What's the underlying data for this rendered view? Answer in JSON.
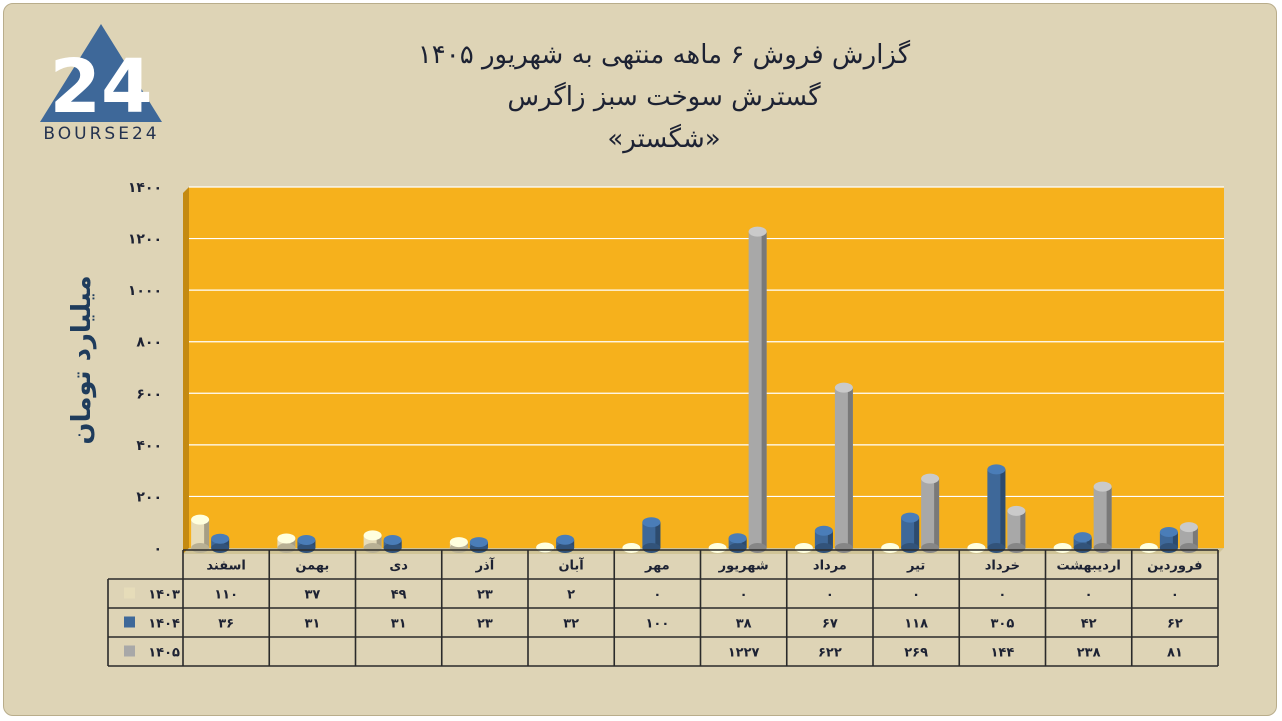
{
  "logo": {
    "digits": "24",
    "text": "BOURSE24"
  },
  "title": {
    "line1": "گزارش  فروش ۶ ماهه منتهی به شهریور ۱۴۰۵",
    "line2": "گسترش سوخت سبز زاگرس",
    "line3": "«شگستر»"
  },
  "colors": {
    "background": "#ded4b6",
    "plot_area": "#f6b11c",
    "series_1403": "#e6dcb9",
    "series_1404": "#3e6899",
    "series_1405": "#a8a8a8"
  },
  "chart_data": {
    "type": "bar",
    "ylabel": "میلیارد تومان",
    "ylim": [
      0,
      1400
    ],
    "yticks": [
      "۰",
      "۲۰۰",
      "۴۰۰",
      "۶۰۰",
      "۸۰۰",
      "۱۰۰۰",
      "۱۲۰۰",
      "۱۴۰۰"
    ],
    "grid": true,
    "categories": [
      "فروردین",
      "اردیبهشت",
      "خرداد",
      "تیر",
      "مرداد",
      "شهریور",
      "مهر",
      "آبان",
      "آذر",
      "دی",
      "بهمن",
      "اسفند"
    ],
    "series": [
      {
        "name": "۱۴۰۳",
        "values": [
          0,
          0,
          0,
          0,
          0,
          0,
          0,
          2,
          23,
          49,
          37,
          110
        ],
        "labels": [
          "۰",
          "۰",
          "۰",
          "۰",
          "۰",
          "۰",
          "۰",
          "۲",
          "۲۳",
          "۴۹",
          "۳۷",
          "۱۱۰"
        ]
      },
      {
        "name": "۱۴۰۴",
        "values": [
          62,
          42,
          305,
          118,
          67,
          38,
          100,
          32,
          23,
          31,
          31,
          36
        ],
        "labels": [
          "۶۲",
          "۴۲",
          "۳۰۵",
          "۱۱۸",
          "۶۷",
          "۳۸",
          "۱۰۰",
          "۳۲",
          "۲۳",
          "۳۱",
          "۳۱",
          "۳۶"
        ]
      },
      {
        "name": "۱۴۰۵",
        "values": [
          81,
          238,
          144,
          269,
          622,
          1227,
          null,
          null,
          null,
          null,
          null,
          null
        ],
        "labels": [
          "۸۱",
          "۲۳۸",
          "۱۴۴",
          "۲۶۹",
          "۶۲۲",
          "۱۲۲۷",
          "",
          "",
          "",
          "",
          "",
          ""
        ]
      }
    ]
  }
}
